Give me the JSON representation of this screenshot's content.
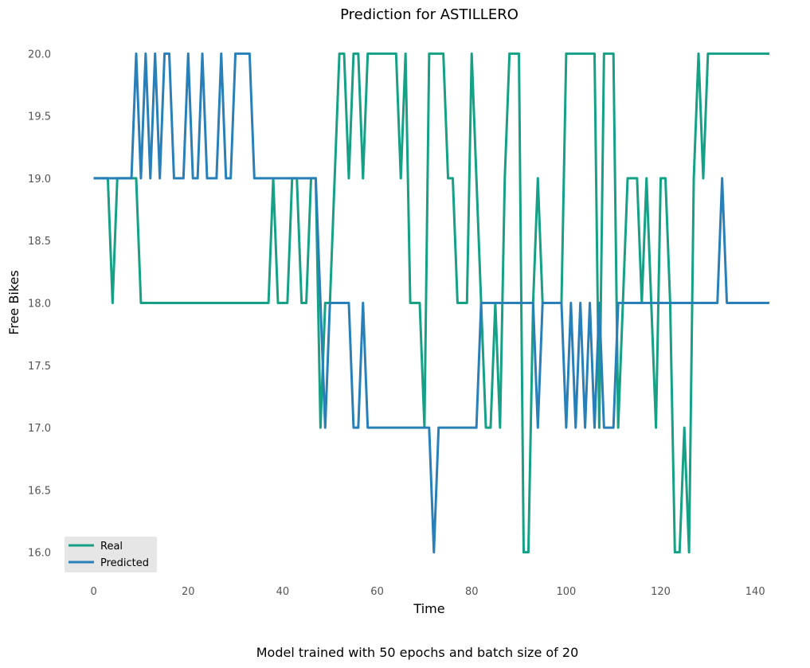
{
  "caption": "Model trained with 50 epochs and batch size of 20",
  "colors": {
    "real": "#16a085",
    "predicted": "#2980b9",
    "legend_bg": "#e6e6e6"
  },
  "chart_data": {
    "type": "line",
    "title": "Prediction for ASTILLERO",
    "xlabel": "Time",
    "ylabel": "Free Bikes",
    "xlim": [
      -6,
      143
    ],
    "ylim": [
      15.8,
      20.2
    ],
    "xticks": [
      0,
      20,
      40,
      60,
      80,
      100,
      120,
      140
    ],
    "yticks": [
      16.0,
      16.5,
      17.0,
      17.5,
      18.0,
      18.5,
      19.0,
      19.5,
      20.0
    ],
    "grid": false,
    "legend": "lower-left",
    "series": [
      {
        "name": "Real",
        "color": "#16a085",
        "values": [
          19,
          19,
          19,
          19,
          18,
          19,
          19,
          19,
          19,
          19,
          18,
          18,
          18,
          18,
          18,
          18,
          18,
          18,
          18,
          18,
          18,
          18,
          18,
          18,
          18,
          18,
          18,
          18,
          18,
          18,
          18,
          18,
          18,
          18,
          18,
          18,
          18,
          18,
          19,
          18,
          18,
          18,
          19,
          19,
          18,
          18,
          19,
          19,
          17,
          18,
          18,
          19,
          20,
          20,
          19,
          20,
          20,
          19,
          20,
          20,
          20,
          20,
          20,
          20,
          20,
          19,
          20,
          18,
          18,
          18,
          17,
          20,
          20,
          20,
          20,
          19,
          19,
          18,
          18,
          18,
          20,
          19,
          18,
          17,
          17,
          18,
          17,
          19,
          20,
          20,
          20,
          16,
          16,
          18,
          19,
          18,
          18,
          18,
          18,
          18,
          20,
          20,
          20,
          20,
          20,
          20,
          20,
          17,
          20,
          20,
          20,
          17,
          18,
          19,
          19,
          19,
          18,
          19,
          18,
          17,
          19,
          19,
          18,
          16,
          16,
          17,
          16,
          19,
          20,
          19,
          20,
          20,
          20,
          20,
          20,
          20,
          20,
          20,
          20,
          20,
          20,
          20,
          20,
          20
        ]
      },
      {
        "name": "Predicted",
        "color": "#2980b9",
        "values": [
          19,
          19,
          19,
          19,
          19,
          19,
          19,
          19,
          19,
          20,
          19,
          20,
          19,
          20,
          19,
          20,
          20,
          19,
          19,
          19,
          20,
          19,
          19,
          20,
          19,
          19,
          19,
          20,
          19,
          19,
          20,
          20,
          20,
          20,
          19,
          19,
          19,
          19,
          19,
          19,
          19,
          19,
          19,
          19,
          19,
          19,
          19,
          19,
          18,
          17,
          18,
          18,
          18,
          18,
          18,
          17,
          17,
          18,
          17,
          17,
          17,
          17,
          17,
          17,
          17,
          17,
          17,
          17,
          17,
          17,
          17,
          17,
          16,
          17,
          17,
          17,
          17,
          17,
          17,
          17,
          17,
          17,
          18,
          18,
          18,
          18,
          18,
          18,
          18,
          18,
          18,
          18,
          18,
          18,
          17,
          18,
          18,
          18,
          18,
          18,
          17,
          18,
          17,
          18,
          17,
          18,
          17,
          18,
          17,
          17,
          17,
          18,
          18,
          18,
          18,
          18,
          18,
          18,
          18,
          18,
          18,
          18,
          18,
          18,
          18,
          18,
          18,
          18,
          18,
          18,
          18,
          18,
          18,
          19,
          18,
          18,
          18,
          18,
          18,
          18,
          18,
          18,
          18,
          18
        ]
      }
    ]
  }
}
